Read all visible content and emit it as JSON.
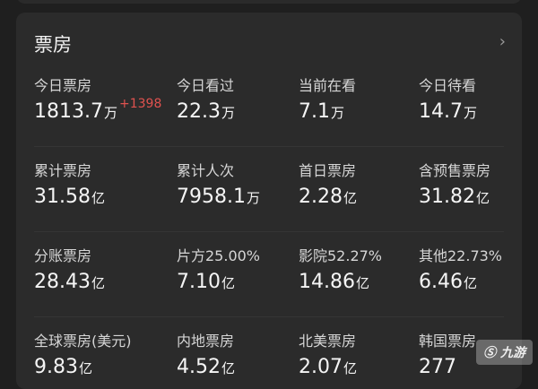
{
  "title": "票房",
  "chevron_icon": "chevron-right-icon",
  "accent_delta_color": "#e0524f",
  "rows": [
    [
      {
        "label": "今日票房",
        "value": "1813.7",
        "unit": "万",
        "delta": "+1398"
      },
      {
        "label": "今日看过",
        "value": "22.3",
        "unit": "万"
      },
      {
        "label": "当前在看",
        "value": "7.1",
        "unit": "万"
      },
      {
        "label": "今日待看",
        "value": "14.7",
        "unit": "万"
      }
    ],
    [
      {
        "label": "累计票房",
        "value": "31.58",
        "unit": "亿"
      },
      {
        "label": "累计人次",
        "value": "7958.1",
        "unit": "万"
      },
      {
        "label": "首日票房",
        "value": "2.28",
        "unit": "亿"
      },
      {
        "label": "含预售票房",
        "value": "31.82",
        "unit": "亿"
      }
    ],
    [
      {
        "label": "分账票房",
        "value": "28.43",
        "unit": "亿"
      },
      {
        "label": "片方25.00%",
        "value": "7.10",
        "unit": "亿"
      },
      {
        "label": "影院52.27%",
        "value": "14.86",
        "unit": "亿"
      },
      {
        "label": "其他22.73%",
        "value": "6.46",
        "unit": "亿"
      }
    ],
    [
      {
        "label": "全球票房(美元)",
        "value": "9.83",
        "unit": "亿"
      },
      {
        "label": "内地票房",
        "value": "4.52",
        "unit": "亿"
      },
      {
        "label": "北美票房",
        "value": "2.07",
        "unit": "亿"
      },
      {
        "label": "韩国票房",
        "value": "277",
        "unit": ""
      }
    ]
  ],
  "watermark": "九游"
}
